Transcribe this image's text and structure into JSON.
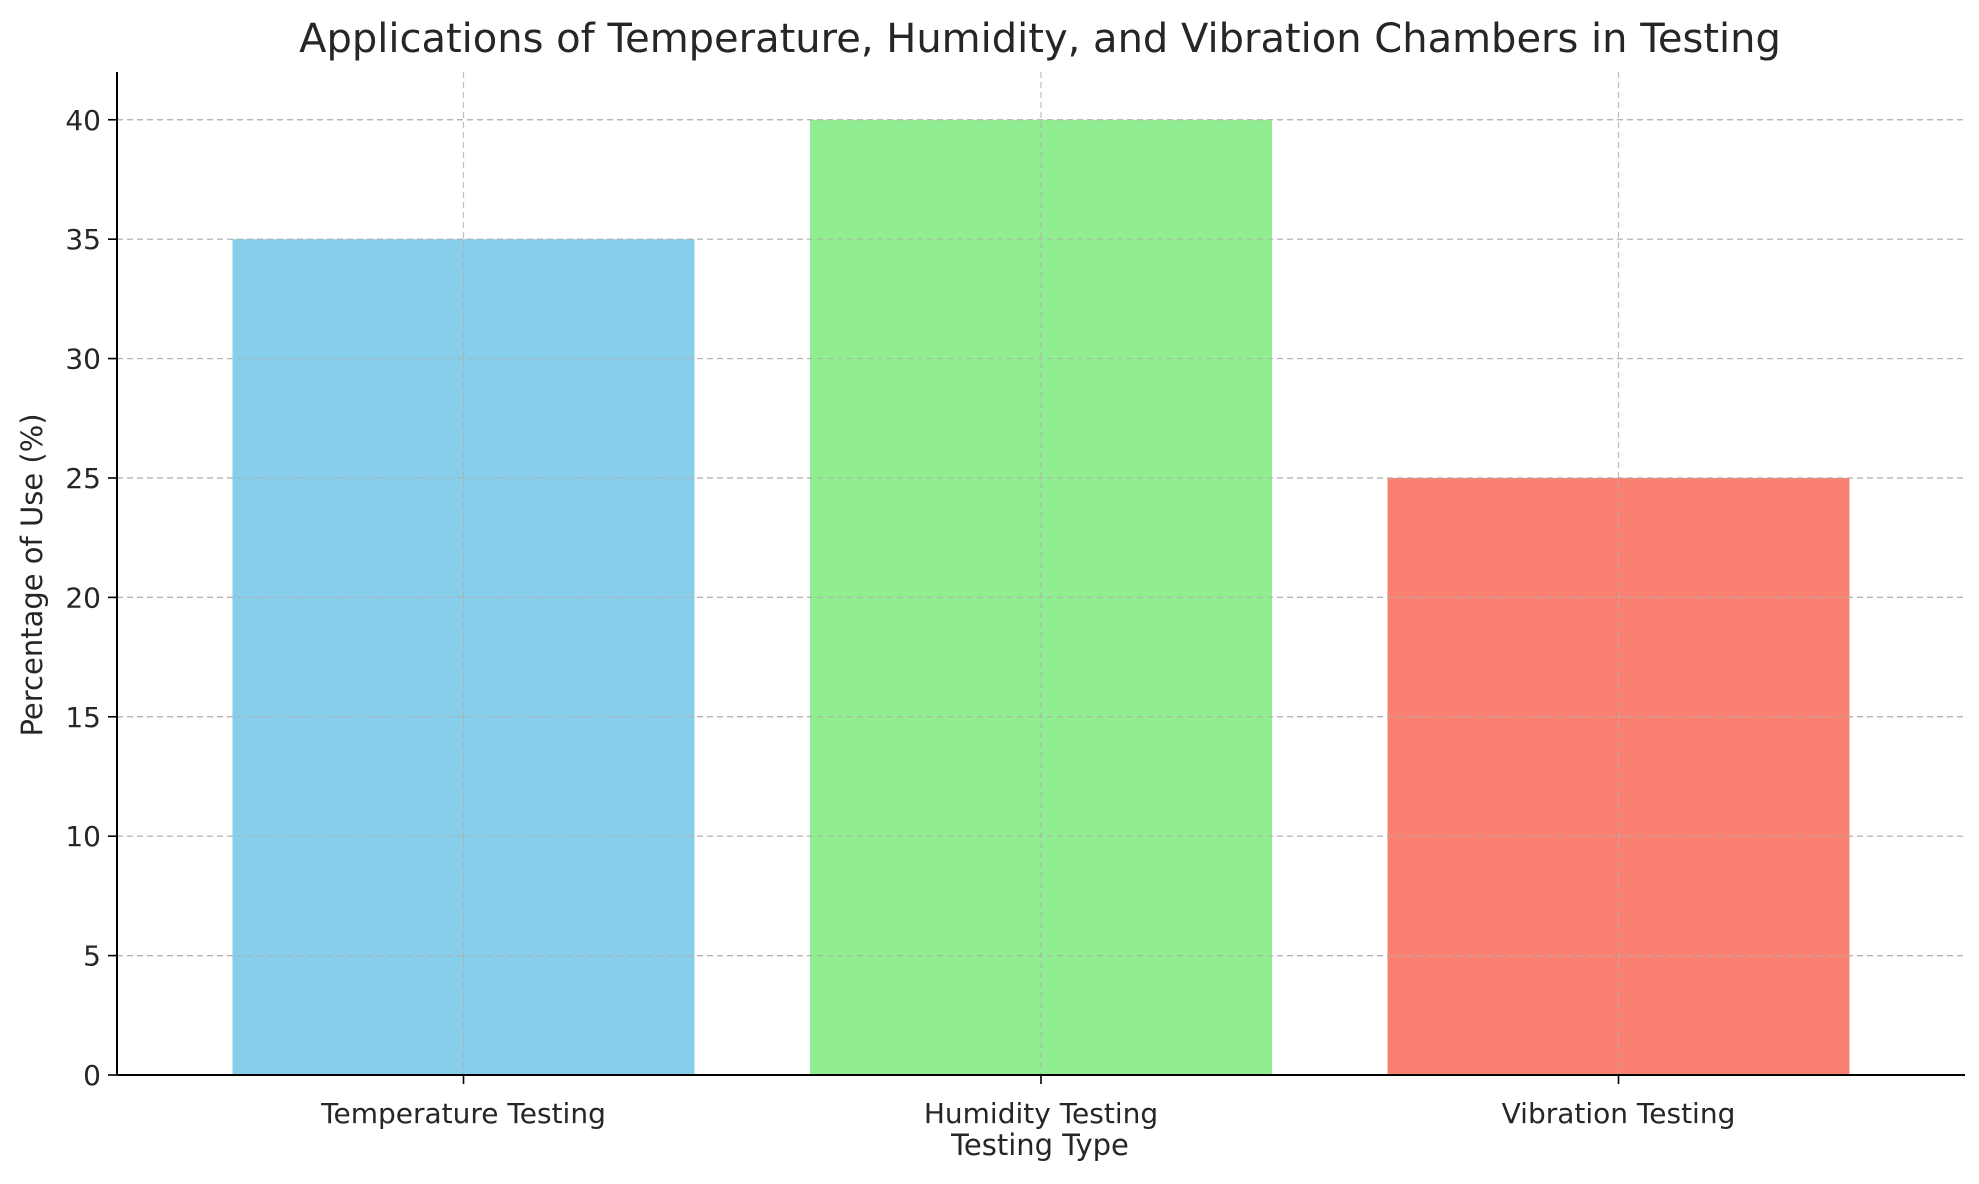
{
  "chart_data": {
    "type": "bar",
    "title": "Applications of Temperature, Humidity, and Vibration Chambers in Testing",
    "xlabel": "Testing Type",
    "ylabel": "Percentage of Use (%)",
    "categories": [
      "Temperature Testing",
      "Humidity Testing",
      "Vibration Testing"
    ],
    "values": [
      35,
      40,
      25
    ],
    "colors": [
      "#87CEEB",
      "#90EE90",
      "#FA8072"
    ],
    "ylim": [
      0,
      42
    ],
    "yticks": [
      0,
      5,
      10,
      15,
      20,
      25,
      30,
      35,
      40
    ],
    "grid": true,
    "legend": "none"
  }
}
